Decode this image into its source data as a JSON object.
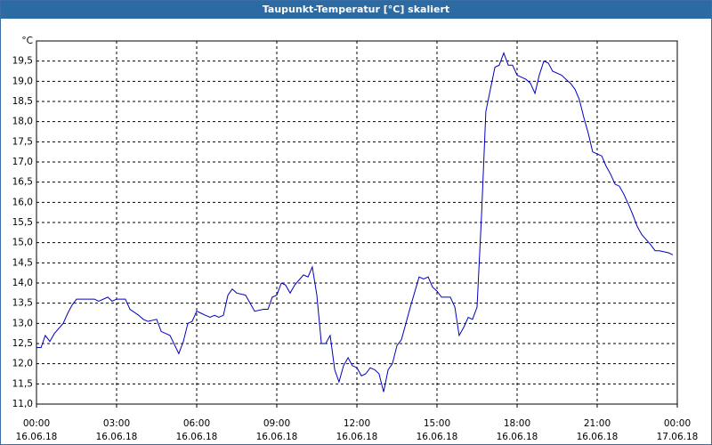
{
  "window_title": "Taupunkt-Temperatur [°C] skaliert",
  "chart_data": {
    "type": "line",
    "y_unit": "°C",
    "color": "#0000c0",
    "grid": true,
    "xlim": [
      0,
      24
    ],
    "ylim": [
      11,
      20
    ],
    "xticks": [
      {
        "value": 0,
        "label": "00:00"
      },
      {
        "value": 3,
        "label": "03:00"
      },
      {
        "value": 6,
        "label": "06:00"
      },
      {
        "value": 9,
        "label": "09:00"
      },
      {
        "value": 12,
        "label": "12:00"
      },
      {
        "value": 15,
        "label": "15:00"
      },
      {
        "value": 18,
        "label": "18:00"
      },
      {
        "value": 21,
        "label": "21:00"
      },
      {
        "value": 24,
        "label": "00:00"
      }
    ],
    "xtick_dates": [
      "16.06.18",
      "16.06.18",
      "16.06.18",
      "16.06.18",
      "16.06.18",
      "16.06.18",
      "16.06.18",
      "16.06.18",
      "17.06.18"
    ],
    "yticks": [
      {
        "value": 11,
        "label": "11,0"
      },
      {
        "value": 11.5,
        "label": "11,5"
      },
      {
        "value": 12,
        "label": "12,0"
      },
      {
        "value": 12.5,
        "label": "12,5"
      },
      {
        "value": 13,
        "label": "13,0"
      },
      {
        "value": 13.5,
        "label": "13,5"
      },
      {
        "value": 14,
        "label": "14,0"
      },
      {
        "value": 14.5,
        "label": "14,5"
      },
      {
        "value": 15,
        "label": "15,0"
      },
      {
        "value": 15.5,
        "label": "15,5"
      },
      {
        "value": 16,
        "label": "16,0"
      },
      {
        "value": 16.5,
        "label": "16,5"
      },
      {
        "value": 17,
        "label": "17,0"
      },
      {
        "value": 17.5,
        "label": "17,5"
      },
      {
        "value": 18,
        "label": "18,0"
      },
      {
        "value": 18.5,
        "label": "18,5"
      },
      {
        "value": 19,
        "label": "19,0"
      },
      {
        "value": 19.5,
        "label": "19,5"
      }
    ],
    "x": [
      0,
      0.17,
      0.33,
      0.5,
      0.67,
      1,
      1.17,
      1.33,
      1.5,
      1.83,
      2.17,
      2.33,
      2.67,
      2.83,
      3,
      3.33,
      3.5,
      3.83,
      4,
      4.17,
      4.5,
      4.67,
      5,
      5.33,
      5.5,
      5.67,
      5.83,
      6,
      6.17,
      6.33,
      6.5,
      6.67,
      6.83,
      7,
      7.17,
      7.33,
      7.5,
      7.83,
      8.17,
      8.5,
      8.67,
      8.83,
      9,
      9.17,
      9.33,
      9.5,
      9.67,
      10,
      10.17,
      10.33,
      10.5,
      10.67,
      10.83,
      11,
      11.17,
      11.33,
      11.5,
      11.67,
      11.83,
      12,
      12.17,
      12.33,
      12.5,
      12.67,
      12.83,
      13,
      13.17,
      13.33,
      13.5,
      13.67,
      14,
      14.33,
      14.5,
      14.67,
      14.83,
      15,
      15.17,
      15.5,
      15.67,
      15.83,
      16,
      16.17,
      16.33,
      16.5,
      16.67,
      16.83,
      17,
      17.17,
      17.33,
      17.5,
      17.67,
      17.83,
      18,
      18.17,
      18.33,
      18.5,
      18.67,
      18.83,
      19,
      19.17,
      19.33,
      19.67,
      19.83,
      20,
      20.17,
      20.33,
      20.5,
      20.67,
      20.83,
      21,
      21.17,
      21.33,
      21.5,
      21.67,
      21.83,
      22,
      22.17,
      22.33,
      22.5,
      22.67,
      23,
      23.17,
      23.33,
      23.67,
      23.83
    ],
    "values": [
      12.4,
      12.4,
      12.7,
      12.55,
      12.75,
      13.0,
      13.25,
      13.45,
      13.6,
      13.6,
      13.6,
      13.55,
      13.65,
      13.55,
      13.6,
      13.6,
      13.35,
      13.2,
      13.1,
      13.05,
      13.1,
      12.8,
      12.7,
      12.25,
      12.55,
      13.0,
      13.05,
      13.3,
      13.25,
      13.2,
      13.15,
      13.2,
      13.15,
      13.2,
      13.7,
      13.85,
      13.75,
      13.7,
      13.3,
      13.35,
      13.35,
      13.65,
      13.7,
      14.0,
      13.95,
      13.75,
      13.95,
      14.2,
      14.15,
      14.4,
      13.7,
      12.5,
      12.5,
      12.7,
      11.85,
      11.55,
      11.95,
      12.15,
      11.95,
      11.9,
      11.7,
      11.75,
      11.9,
      11.85,
      11.75,
      11.3,
      11.85,
      12.0,
      12.45,
      12.6,
      13.4,
      14.15,
      14.1,
      14.15,
      13.9,
      13.8,
      13.65,
      13.65,
      13.4,
      12.7,
      12.9,
      13.15,
      13.1,
      13.4,
      15.7,
      18.25,
      18.8,
      19.35,
      19.4,
      19.7,
      19.4,
      19.4,
      19.15,
      19.1,
      19.05,
      18.95,
      18.7,
      19.15,
      19.5,
      19.45,
      19.25,
      19.15,
      19.05,
      18.95,
      18.8,
      18.55,
      18.1,
      17.7,
      17.25,
      17.2,
      17.15,
      16.9,
      16.7,
      16.45,
      16.4,
      16.2,
      15.95,
      15.7,
      15.4,
      15.2,
      14.95,
      14.8,
      14.8,
      14.75,
      14.7
    ]
  }
}
